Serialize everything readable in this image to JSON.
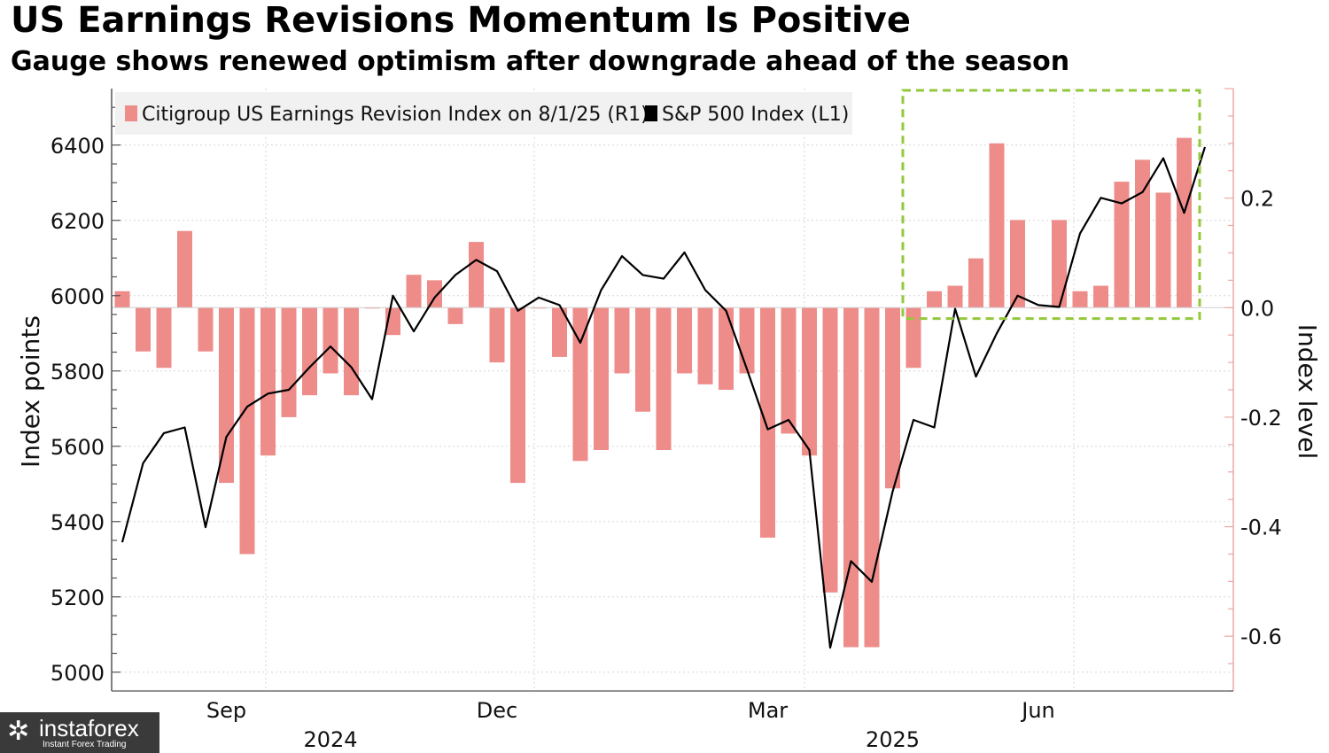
{
  "header": {
    "title": "US Earnings Revisions Momentum Is Positive",
    "subtitle": "Gauge shows renewed optimism after downgrade ahead of the season"
  },
  "watermark": {
    "name": "instaforex",
    "tagline": "Instant Forex Trading"
  },
  "chart_data": {
    "type": "bar",
    "title": "US Earnings Revisions Momentum Is Positive",
    "subtitle": "Gauge shows renewed optimism after downgrade ahead of the season",
    "ylabel_left": "Index points",
    "ylabel_right": "Index level",
    "ylim_left": [
      4950,
      6550
    ],
    "ylim_right": [
      -0.7,
      0.4
    ],
    "yticks_left": [
      "5000",
      "5200",
      "5400",
      "5600",
      "5800",
      "6000",
      "6200",
      "6400"
    ],
    "yticks_right": [
      "0.2",
      "0.0",
      "-0.2",
      "-0.4",
      "-0.6"
    ],
    "xlabels": [
      {
        "label": "Sep",
        "week": 5
      },
      {
        "label": "Dec",
        "week": 18
      },
      {
        "label": "Mar",
        "week": 31
      },
      {
        "label": "Jun",
        "week": 44
      }
    ],
    "years": [
      {
        "label": "2024",
        "week": 10
      },
      {
        "label": "2025",
        "week": 37
      }
    ],
    "legend": [
      {
        "name": "Citigroup US Earnings Revision Index on 8/1/25 (R1)",
        "color": "#ee8c8a"
      },
      {
        "name": "S&P 500 Index (L1)",
        "color": "#000000"
      }
    ],
    "highlight_range_weeks": [
      38,
      52
    ],
    "series": [
      {
        "name": "Citigroup US Earnings Revision Index on 8/1/25 (R1)",
        "axis": "right",
        "color": "#ee8c8a",
        "values": [
          0.03,
          -0.08,
          -0.11,
          0.14,
          -0.08,
          -0.32,
          -0.45,
          -0.27,
          -0.2,
          -0.16,
          -0.12,
          -0.16,
          0.0,
          -0.05,
          0.06,
          0.05,
          -0.03,
          0.12,
          -0.1,
          -0.32,
          0.0,
          -0.09,
          -0.28,
          -0.26,
          -0.12,
          -0.19,
          -0.26,
          -0.12,
          -0.14,
          -0.15,
          -0.12,
          -0.42,
          -0.23,
          -0.27,
          -0.52,
          -0.62,
          -0.62,
          -0.33,
          -0.11,
          0.03,
          0.04,
          0.09,
          0.3,
          0.16,
          0.0,
          0.16,
          0.03,
          0.04,
          0.23,
          0.27,
          0.21,
          0.31
        ]
      },
      {
        "name": "S&P 500 Index (L1)",
        "axis": "left",
        "color": "#000000",
        "values": [
          5345,
          5555,
          5635,
          5650,
          5385,
          5625,
          5705,
          5740,
          5750,
          5810,
          5865,
          5810,
          5725,
          6000,
          5905,
          5995,
          6055,
          6095,
          6065,
          5960,
          5995,
          5975,
          5875,
          6015,
          6105,
          6055,
          6045,
          6115,
          6015,
          5960,
          5805,
          5645,
          5670,
          5590,
          5065,
          5295,
          5240,
          5480,
          5670,
          5650,
          5965,
          5785,
          5900,
          6000,
          5975,
          5970,
          6165,
          6260,
          6245,
          6275,
          6365,
          6220,
          6395
        ]
      }
    ]
  }
}
